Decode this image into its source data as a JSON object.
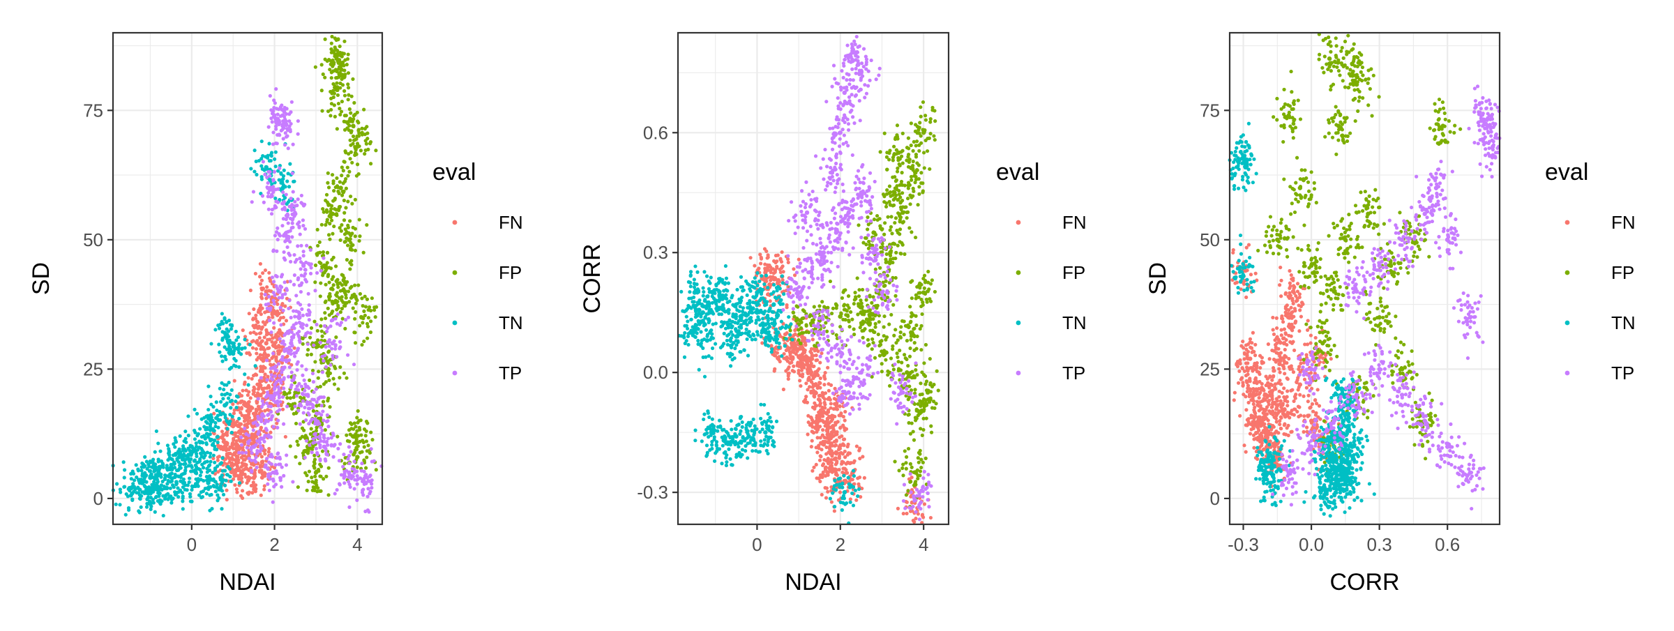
{
  "chart_data": [
    {
      "type": "scatter",
      "xlabel": "NDAI",
      "ylabel": "SD",
      "xlim": [
        -1.9,
        4.6
      ],
      "ylim": [
        -5,
        90
      ],
      "x_ticks": [
        0,
        2,
        4
      ],
      "x_tick_labels": [
        "0",
        "2",
        "4"
      ],
      "y_ticks": [
        0,
        25,
        50,
        75
      ],
      "y_tick_labels": [
        "0",
        "25",
        "50",
        "75"
      ],
      "grid": true,
      "legend_title": "eval",
      "legend_position": "right",
      "series": [
        {
          "name": "FN",
          "color": "#F8766D",
          "points": [
            [
              0.9,
              6
            ],
            [
              1.1,
              8
            ],
            [
              1.3,
              12
            ],
            [
              1.5,
              15
            ],
            [
              1.6,
              20
            ],
            [
              1.7,
              25
            ],
            [
              1.8,
              30
            ],
            [
              1.9,
              18
            ],
            [
              2.0,
              22
            ],
            [
              1.2,
              5
            ],
            [
              1.4,
              9
            ],
            [
              1.0,
              14
            ],
            [
              1.6,
              33
            ],
            [
              1.8,
              40
            ],
            [
              2.1,
              28
            ],
            [
              0.8,
              10
            ],
            [
              1.3,
              18
            ],
            [
              1.5,
              4
            ],
            [
              1.7,
              7
            ],
            [
              2.0,
              36
            ]
          ]
        },
        {
          "name": "FP",
          "color": "#7CAE00",
          "points": [
            [
              3.0,
              30
            ],
            [
              3.2,
              45
            ],
            [
              3.4,
              55
            ],
            [
              3.6,
              60
            ],
            [
              3.8,
              50
            ],
            [
              3.5,
              85
            ],
            [
              3.6,
              83
            ],
            [
              3.5,
              79
            ],
            [
              3.9,
              72
            ],
            [
              4.0,
              68
            ],
            [
              3.3,
              25
            ],
            [
              3.1,
              15
            ],
            [
              2.8,
              10
            ],
            [
              3.7,
              40
            ],
            [
              4.1,
              35
            ],
            [
              3.0,
              5
            ],
            [
              2.5,
              20
            ],
            [
              3.9,
              12
            ],
            [
              4.0,
              8
            ],
            [
              3.4,
              38
            ]
          ]
        },
        {
          "name": "TN",
          "color": "#00BFC4",
          "points": [
            [
              -1.5,
              2
            ],
            [
              -1.2,
              3
            ],
            [
              -1.0,
              4
            ],
            [
              -0.8,
              5
            ],
            [
              -0.5,
              6
            ],
            [
              -0.3,
              8
            ],
            [
              0,
              10
            ],
            [
              0.3,
              12
            ],
            [
              0.5,
              15
            ],
            [
              0.8,
              18
            ],
            [
              -0.2,
              3
            ],
            [
              0.1,
              5
            ],
            [
              0.4,
              3
            ],
            [
              0.7,
              4
            ],
            [
              1.0,
              28
            ],
            [
              0.8,
              32
            ],
            [
              1.8,
              64
            ],
            [
              2.2,
              60
            ],
            [
              -0.6,
              2
            ],
            [
              -1.0,
              1
            ]
          ]
        },
        {
          "name": "TP",
          "color": "#C77CFF",
          "points": [
            [
              1.5,
              10
            ],
            [
              1.8,
              15
            ],
            [
              2.0,
              20
            ],
            [
              2.2,
              25
            ],
            [
              2.4,
              30
            ],
            [
              2.6,
              35
            ],
            [
              2.8,
              20
            ],
            [
              3.0,
              15
            ],
            [
              3.2,
              10
            ],
            [
              2.1,
              40
            ],
            [
              2.3,
              50
            ],
            [
              2.5,
              55
            ],
            [
              2.1,
              73
            ],
            [
              2.2,
              72
            ],
            [
              1.9,
              60
            ],
            [
              2.7,
              45
            ],
            [
              3.4,
              30
            ],
            [
              3.8,
              5
            ],
            [
              4.2,
              3
            ],
            [
              2.0,
              5
            ]
          ]
        }
      ]
    },
    {
      "type": "scatter",
      "xlabel": "NDAI",
      "ylabel": "CORR",
      "xlim": [
        -1.9,
        4.6
      ],
      "ylim": [
        -0.38,
        0.85
      ],
      "x_ticks": [
        0,
        2,
        4
      ],
      "x_tick_labels": [
        "0",
        "2",
        "4"
      ],
      "y_ticks": [
        -0.3,
        0.0,
        0.3,
        0.6
      ],
      "y_tick_labels": [
        "-0.3",
        "0.0",
        "0.3",
        "0.6"
      ],
      "grid": true,
      "legend_title": "eval",
      "legend_position": "right",
      "series": [
        {
          "name": "FN",
          "color": "#F8766D",
          "points": [
            [
              0.5,
              0.06
            ],
            [
              0.8,
              0.05
            ],
            [
              1.0,
              0.04
            ],
            [
              1.2,
              0.02
            ],
            [
              1.4,
              -0.05
            ],
            [
              1.6,
              -0.1
            ],
            [
              1.8,
              -0.15
            ],
            [
              1.9,
              -0.2
            ],
            [
              1.7,
              -0.25
            ],
            [
              2.0,
              -0.28
            ],
            [
              2.3,
              -0.25
            ],
            [
              3.8,
              -0.32
            ],
            [
              0.2,
              0.25
            ],
            [
              0.3,
              0.22
            ],
            [
              0.6,
              0.24
            ],
            [
              1.1,
              0.08
            ],
            [
              1.5,
              -0.12
            ],
            [
              1.3,
              0.0
            ],
            [
              1.9,
              -0.08
            ],
            [
              1.6,
              -0.18
            ]
          ]
        },
        {
          "name": "FP",
          "color": "#7CAE00",
          "points": [
            [
              1.0,
              0.12
            ],
            [
              1.5,
              0.13
            ],
            [
              2.0,
              0.14
            ],
            [
              2.5,
              0.15
            ],
            [
              3.0,
              0.2
            ],
            [
              3.2,
              0.3
            ],
            [
              3.5,
              0.4
            ],
            [
              3.8,
              0.5
            ],
            [
              4.0,
              0.2
            ],
            [
              3.6,
              0.0
            ],
            [
              3.9,
              -0.1
            ],
            [
              4.1,
              -0.05
            ],
            [
              3.4,
              0.55
            ],
            [
              3.7,
              0.1
            ],
            [
              3.8,
              -0.25
            ],
            [
              2.8,
              0.35
            ],
            [
              3.3,
              0.45
            ],
            [
              4.0,
              0.6
            ],
            [
              3.1,
              0.05
            ],
            [
              2.7,
              0.12
            ]
          ]
        },
        {
          "name": "TN",
          "color": "#00BFC4",
          "points": [
            [
              -1.6,
              0.1
            ],
            [
              -1.3,
              0.15
            ],
            [
              -1.0,
              0.18
            ],
            [
              -0.7,
              0.12
            ],
            [
              -0.4,
              0.14
            ],
            [
              -0.1,
              0.16
            ],
            [
              0.2,
              0.12
            ],
            [
              0.5,
              0.1
            ],
            [
              -1.5,
              0.2
            ],
            [
              -1.2,
              0.08
            ],
            [
              -0.9,
              0.19
            ],
            [
              -0.5,
              0.09
            ],
            [
              0.0,
              0.2
            ],
            [
              0.4,
              0.17
            ],
            [
              -1.1,
              -0.15
            ],
            [
              -0.8,
              -0.17
            ],
            [
              -0.5,
              -0.16
            ],
            [
              -0.2,
              -0.16
            ],
            [
              0.2,
              -0.15
            ],
            [
              2.1,
              -0.3
            ]
          ]
        },
        {
          "name": "TP",
          "color": "#C77CFF",
          "points": [
            [
              1.0,
              0.2
            ],
            [
              1.3,
              0.25
            ],
            [
              1.6,
              0.3
            ],
            [
              1.9,
              0.35
            ],
            [
              2.2,
              0.4
            ],
            [
              2.5,
              0.45
            ],
            [
              2.8,
              0.3
            ],
            [
              2.0,
              0.6
            ],
            [
              2.1,
              0.7
            ],
            [
              2.3,
              0.78
            ],
            [
              2.5,
              0.75
            ],
            [
              1.8,
              0.5
            ],
            [
              1.5,
              0.1
            ],
            [
              2.0,
              0.05
            ],
            [
              2.5,
              0.0
            ],
            [
              3.0,
              0.2
            ],
            [
              2.2,
              -0.05
            ],
            [
              3.5,
              -0.05
            ],
            [
              3.9,
              -0.3
            ],
            [
              1.2,
              0.4
            ]
          ]
        }
      ]
    },
    {
      "type": "scatter",
      "xlabel": "CORR",
      "ylabel": "SD",
      "xlim": [
        -0.36,
        0.83
      ],
      "ylim": [
        -5,
        90
      ],
      "x_ticks": [
        -0.3,
        0.0,
        0.3,
        0.6
      ],
      "x_tick_labels": [
        "-0.3",
        "0.0",
        "0.3",
        "0.6"
      ],
      "y_ticks": [
        0,
        25,
        50,
        75
      ],
      "y_tick_labels": [
        "0",
        "25",
        "50",
        "75"
      ],
      "grid": true,
      "legend_title": "eval",
      "legend_position": "right",
      "series": [
        {
          "name": "FN",
          "color": "#F8766D",
          "points": [
            [
              -0.3,
              44
            ],
            [
              -0.28,
              25
            ],
            [
              -0.25,
              20
            ],
            [
              -0.22,
              15
            ],
            [
              -0.2,
              12
            ],
            [
              -0.18,
              10
            ],
            [
              -0.15,
              18
            ],
            [
              -0.12,
              30
            ],
            [
              -0.1,
              35
            ],
            [
              -0.05,
              22
            ],
            [
              0.0,
              15
            ],
            [
              0.02,
              28
            ],
            [
              -0.27,
              27
            ],
            [
              -0.16,
              8
            ],
            [
              -0.08,
              40
            ],
            [
              -0.24,
              14
            ],
            [
              -0.14,
              26
            ],
            [
              0.05,
              12
            ],
            [
              -0.2,
              20
            ],
            [
              -0.11,
              16
            ]
          ]
        },
        {
          "name": "FP",
          "color": "#7CAE00",
          "points": [
            [
              0.05,
              30
            ],
            [
              0.1,
              40
            ],
            [
              0.15,
              50
            ],
            [
              0.08,
              85
            ],
            [
              0.18,
              84
            ],
            [
              0.2,
              80
            ],
            [
              0.12,
              72
            ],
            [
              -0.1,
              74
            ],
            [
              0.25,
              55
            ],
            [
              0.3,
              35
            ],
            [
              0.4,
              25
            ],
            [
              0.5,
              15
            ],
            [
              0.58,
              72
            ],
            [
              0.0,
              45
            ],
            [
              -0.05,
              60
            ],
            [
              0.2,
              20
            ],
            [
              0.35,
              45
            ],
            [
              0.1,
              10
            ],
            [
              0.45,
              50
            ],
            [
              -0.15,
              50
            ]
          ]
        },
        {
          "name": "TN",
          "color": "#00BFC4",
          "points": [
            [
              -0.3,
              66
            ],
            [
              -0.29,
              64
            ],
            [
              -0.3,
              43
            ],
            [
              -0.2,
              5
            ],
            [
              -0.18,
              3
            ],
            [
              0.05,
              2
            ],
            [
              0.08,
              5
            ],
            [
              0.1,
              8
            ],
            [
              0.12,
              12
            ],
            [
              0.14,
              15
            ],
            [
              0.16,
              18
            ],
            [
              0.18,
              10
            ],
            [
              0.1,
              2
            ],
            [
              0.15,
              3
            ],
            [
              0.12,
              6
            ],
            [
              0.16,
              4
            ],
            [
              0.07,
              10
            ],
            [
              0.13,
              20
            ],
            [
              0.17,
              7
            ],
            [
              -0.17,
              8
            ]
          ]
        },
        {
          "name": "TP",
          "color": "#C77CFF",
          "points": [
            [
              0.0,
              10
            ],
            [
              0.1,
              15
            ],
            [
              0.2,
              20
            ],
            [
              0.3,
              25
            ],
            [
              0.4,
              20
            ],
            [
              0.5,
              15
            ],
            [
              0.6,
              10
            ],
            [
              0.7,
              5
            ],
            [
              0.2,
              40
            ],
            [
              0.3,
              45
            ],
            [
              0.4,
              50
            ],
            [
              0.5,
              55
            ],
            [
              0.55,
              60
            ],
            [
              0.6,
              50
            ],
            [
              0.75,
              73
            ],
            [
              0.78,
              72
            ],
            [
              0.8,
              68
            ],
            [
              0.7,
              35
            ],
            [
              -0.1,
              5
            ],
            [
              0.0,
              25
            ]
          ]
        }
      ]
    }
  ],
  "legend": {
    "title": "eval",
    "items": [
      {
        "label": "FN",
        "color": "#F8766D"
      },
      {
        "label": "FP",
        "color": "#7CAE00"
      },
      {
        "label": "TN",
        "color": "#00BFC4"
      },
      {
        "label": "TP",
        "color": "#C77CFF"
      }
    ]
  }
}
